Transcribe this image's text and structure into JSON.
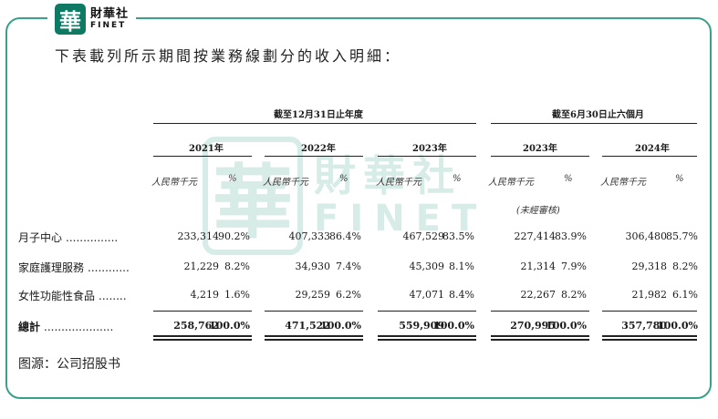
{
  "brand": {
    "badge_char": "華",
    "name_cn": "財華社",
    "name_en": "FINET"
  },
  "intro": "下表載列所示期間按業務線劃分的收入明細：",
  "headers": {
    "period_year": "截至12月31日止年度",
    "period_half": "截至6月30日止六個月",
    "years": [
      "2021年",
      "2022年",
      "2023年",
      "2023年",
      "2024年"
    ],
    "unit_amount": "人民幣千元",
    "unit_pct": "%",
    "unaudited": "(未經審核)"
  },
  "rows": [
    {
      "label": "月子中心",
      "dots": "...............",
      "values": [
        "233,314",
        "90.2%",
        "407,333",
        "86.4%",
        "467,529",
        "83.5%",
        "227,414",
        "83.9%",
        "306,480",
        "85.7%"
      ]
    },
    {
      "label": "家庭護理服務",
      "dots": "............",
      "values": [
        "21,229",
        "8.2%",
        "34,930",
        "7.4%",
        "45,309",
        "8.1%",
        "21,314",
        "7.9%",
        "29,318",
        "8.2%"
      ]
    },
    {
      "label": "女性功能性食品",
      "dots": "........",
      "values": [
        "4,219",
        "1.6%",
        "29,259",
        "6.2%",
        "47,071",
        "8.4%",
        "22,267",
        "8.2%",
        "21,982",
        "6.1%"
      ]
    }
  ],
  "total": {
    "label": "總計",
    "dots": "....................",
    "values": [
      "258,762",
      "100.0%",
      "471,522",
      "100.0%",
      "559,909",
      "100.0%",
      "270,995",
      "100.0%",
      "357,780",
      "100.0%"
    ]
  },
  "source": "图源：公司招股书"
}
